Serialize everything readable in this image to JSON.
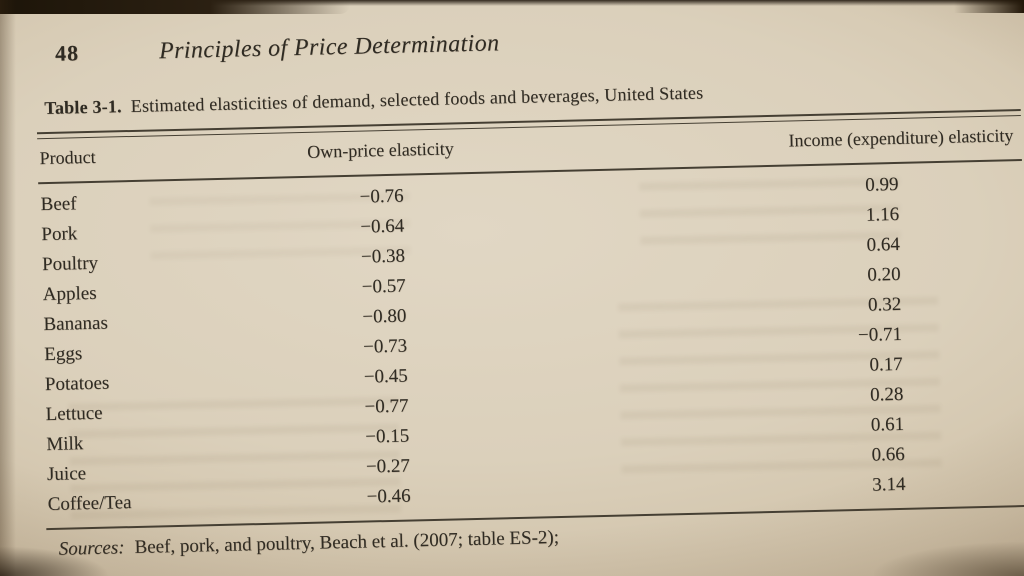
{
  "page": {
    "number": "48",
    "running_title": "Principles of Price Determination"
  },
  "table": {
    "caption_label": "Table 3-1.",
    "caption_text": "Estimated elasticities of demand, selected foods and beverages, United States",
    "columns": [
      "Product",
      "Own-price elasticity",
      "Income (expenditure) elasticity"
    ],
    "rows": [
      {
        "product": "Beef",
        "own_price": "−0.76",
        "income": "0.99"
      },
      {
        "product": "Pork",
        "own_price": "−0.64",
        "income": "1.16"
      },
      {
        "product": "Poultry",
        "own_price": "−0.38",
        "income": "0.64"
      },
      {
        "product": "Apples",
        "own_price": "−0.57",
        "income": "0.20"
      },
      {
        "product": "Bananas",
        "own_price": "−0.80",
        "income": "0.32"
      },
      {
        "product": "Eggs",
        "own_price": "−0.73",
        "income": "−0.71"
      },
      {
        "product": "Potatoes",
        "own_price": "−0.45",
        "income": "0.17"
      },
      {
        "product": "Lettuce",
        "own_price": "−0.77",
        "income": "0.28"
      },
      {
        "product": "Milk",
        "own_price": "−0.15",
        "income": "0.61"
      },
      {
        "product": "Juice",
        "own_price": "−0.27",
        "income": "0.66"
      },
      {
        "product": "Coffee/Tea",
        "own_price": "−0.46",
        "income": "3.14"
      }
    ]
  },
  "footer": {
    "sources_label": "Sources:",
    "sources_text": "Beef, pork, and poultry, Beach et al. (2007; table ES-2);"
  },
  "chart_data": {
    "type": "table",
    "title": "Table 3-1. Estimated elasticities of demand, selected foods and beverages, United States",
    "columns": [
      "Product",
      "Own-price elasticity",
      "Income (expenditure) elasticity"
    ],
    "rows": [
      [
        "Beef",
        -0.76,
        0.99
      ],
      [
        "Pork",
        -0.64,
        1.16
      ],
      [
        "Poultry",
        -0.38,
        0.64
      ],
      [
        "Apples",
        -0.57,
        0.2
      ],
      [
        "Bananas",
        -0.8,
        0.32
      ],
      [
        "Eggs",
        -0.73,
        -0.71
      ],
      [
        "Potatoes",
        -0.45,
        0.17
      ],
      [
        "Lettuce",
        -0.77,
        0.28
      ],
      [
        "Milk",
        -0.15,
        0.61
      ],
      [
        "Juice",
        -0.27,
        0.66
      ],
      [
        "Coffee/Tea",
        -0.46,
        3.14
      ]
    ]
  }
}
